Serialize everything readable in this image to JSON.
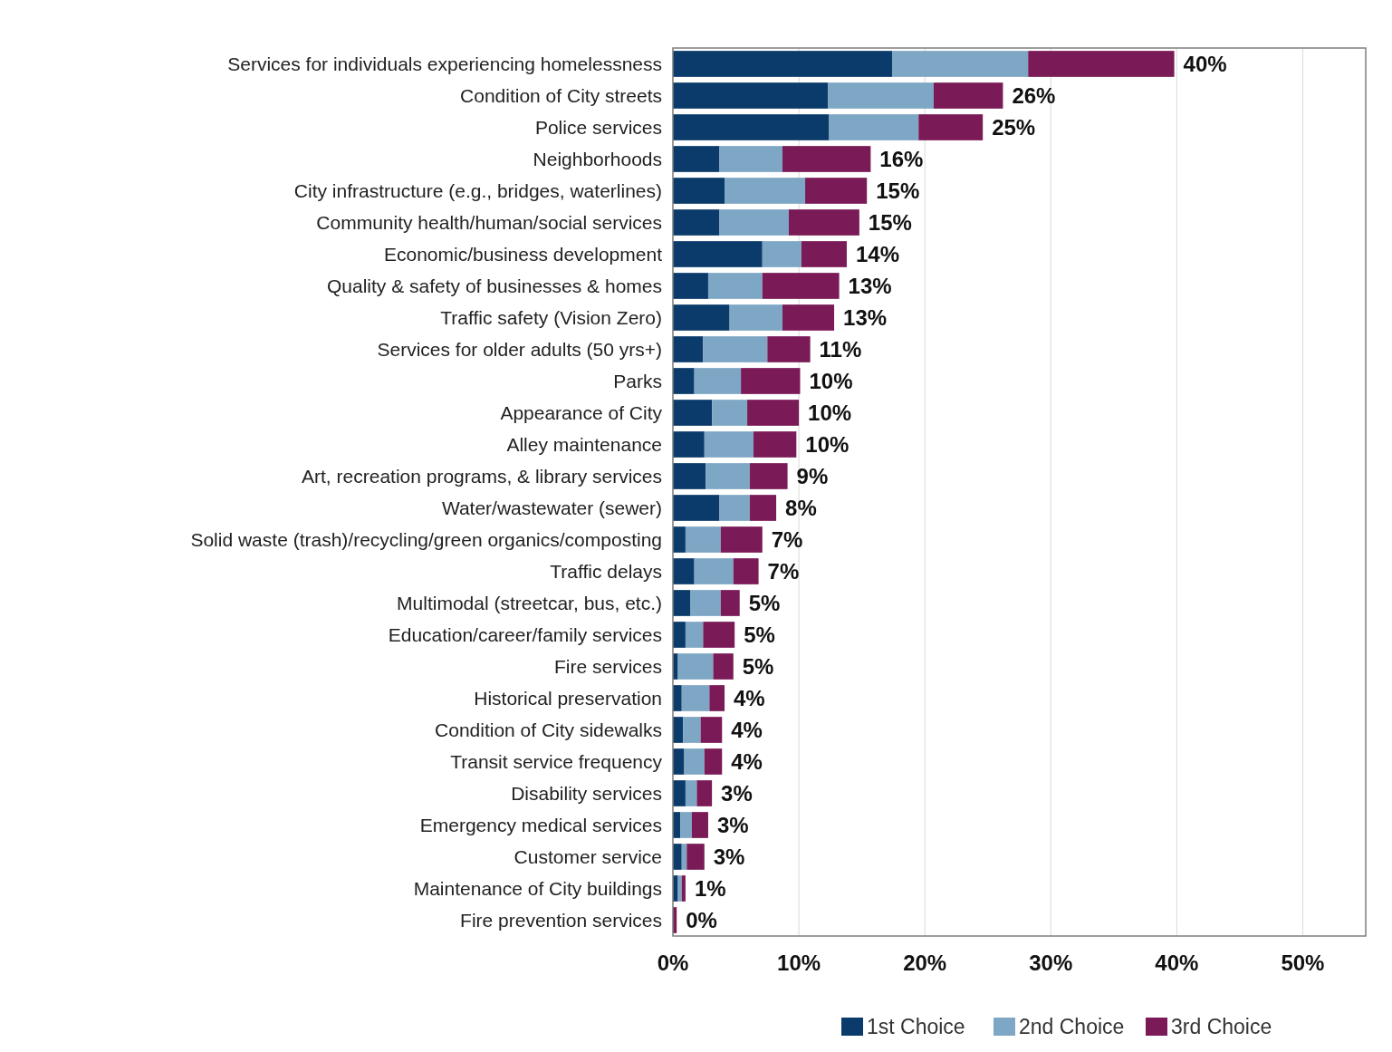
{
  "chart_data": {
    "type": "bar",
    "orientation": "horizontal",
    "stacked": true,
    "categories": [
      "Services for individuals experiencing homelessness",
      "Condition of City streets",
      "Police services",
      "Neighborhoods",
      "City infrastructure (e.g., bridges, waterlines)",
      "Community health/human/social services",
      "Economic/business development",
      "Quality & safety of businesses & homes",
      "Traffic safety (Vision Zero)",
      "Services for older adults (50 yrs+)",
      "Parks",
      "Appearance of City",
      "Alley maintenance",
      "Art, recreation programs, & library services",
      "Water/wastewater (sewer)",
      "Solid waste (trash)/recycling/green organics/composting",
      "Traffic delays",
      "Multimodal (streetcar, bus, etc.)",
      "Education/career/family services",
      "Fire services",
      "Historical preservation",
      "Condition of City sidewalks",
      "Transit service frequency",
      "Disability services",
      "Emergency medical services",
      "Customer service",
      "Maintenance of City buildings",
      "Fire prevention services"
    ],
    "series": [
      {
        "name": "1st Choice",
        "color": "#0b3b6b",
        "values": [
          17.4,
          12.3,
          12.4,
          3.7,
          4.1,
          3.7,
          7.1,
          2.8,
          4.5,
          2.4,
          1.7,
          3.1,
          2.5,
          2.6,
          3.7,
          1.0,
          1.7,
          1.4,
          1.0,
          0.4,
          0.7,
          0.8,
          0.9,
          1.0,
          0.6,
          0.7,
          0.4,
          0
        ]
      },
      {
        "name": "2nd Choice",
        "color": "#7ea7c5",
        "values": [
          10.8,
          8.4,
          7.1,
          5.0,
          6.4,
          5.5,
          3.1,
          4.3,
          4.2,
          5.1,
          3.7,
          2.8,
          3.9,
          3.5,
          2.4,
          2.8,
          3.1,
          2.4,
          1.4,
          2.8,
          2.2,
          1.4,
          1.6,
          0.9,
          0.9,
          0.4,
          0.3,
          0
        ]
      },
      {
        "name": "3rd Choice",
        "color": "#7a1a56",
        "values": [
          11.6,
          5.5,
          5.1,
          7.0,
          4.9,
          5.6,
          3.6,
          6.1,
          4.1,
          3.4,
          4.7,
          4.1,
          3.4,
          3.0,
          2.1,
          3.3,
          2.0,
          1.5,
          2.5,
          1.6,
          1.2,
          1.7,
          1.4,
          1.2,
          1.3,
          1.4,
          0.3,
          0.3
        ]
      }
    ],
    "totals": [
      "40%",
      "26%",
      "25%",
      "16%",
      "15%",
      "15%",
      "14%",
      "13%",
      "13%",
      "11%",
      "10%",
      "10%",
      "10%",
      "9%",
      "8%",
      "7%",
      "7%",
      "5%",
      "5%",
      "5%",
      "4%",
      "4%",
      "4%",
      "3%",
      "3%",
      "3%",
      "1%",
      "0%"
    ],
    "xlim": [
      0,
      55
    ],
    "xticks": [
      {
        "value": 0,
        "label": "0%"
      },
      {
        "value": 10,
        "label": "10%"
      },
      {
        "value": 20,
        "label": "20%"
      },
      {
        "value": 30,
        "label": "30%"
      },
      {
        "value": 40,
        "label": "40%"
      },
      {
        "value": 50,
        "label": "50%"
      }
    ],
    "grid": "x",
    "legend": "bottom right"
  }
}
